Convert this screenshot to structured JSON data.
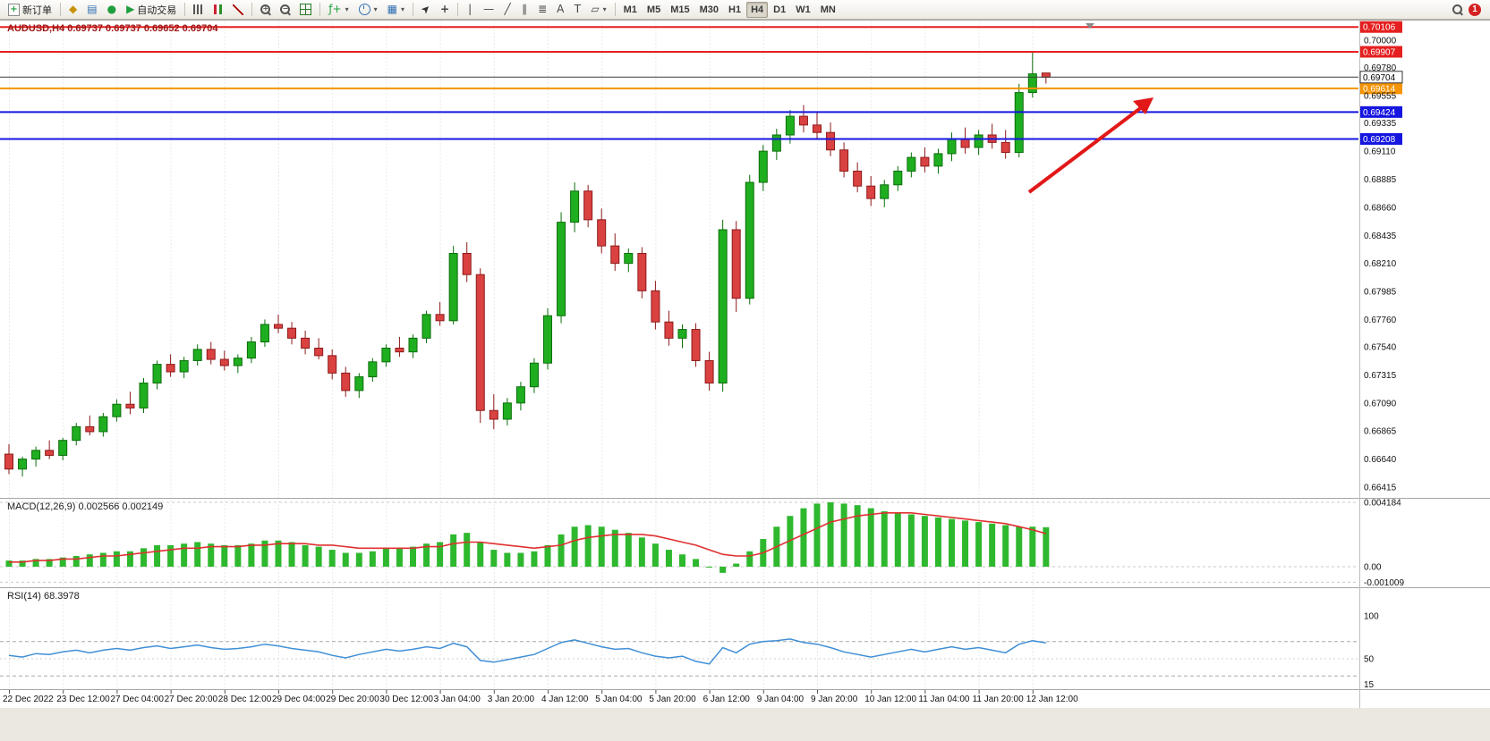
{
  "toolbar": {
    "new_order_label": "新订单",
    "autotrading_label": "自动交易",
    "timeframes": [
      "M1",
      "M5",
      "M15",
      "M30",
      "H1",
      "H4",
      "D1",
      "W1",
      "MN"
    ],
    "active_timeframe": "H4",
    "notification_count": "1"
  },
  "chart_data": {
    "type": "candlestick",
    "symbol": "AUDUSD,H4",
    "quote": {
      "open": "0.69737",
      "high": "0.69737",
      "low": "0.69652",
      "close": "0.69704"
    },
    "time_labels": [
      "22 Dec 2022",
      "23 Dec 12:00",
      "27 Dec 04:00",
      "27 Dec 20:00",
      "28 Dec 12:00",
      "29 Dec 04:00",
      "29 Dec 20:00",
      "30 Dec 12:00",
      "3 Jan 04:00",
      "3 Jan 20:00",
      "4 Jan 12:00",
      "5 Jan 04:00",
      "5 Jan 20:00",
      "6 Jan 12:00",
      "9 Jan 04:00",
      "9 Jan 20:00",
      "10 Jan 12:00",
      "11 Jan 04:00",
      "11 Jan 20:00",
      "12 Jan 12:00"
    ],
    "price_axis_labels": [
      "0.70000",
      "0.69780",
      "0.69555",
      "0.69335",
      "0.69110",
      "0.68885",
      "0.68660",
      "0.68435",
      "0.68210",
      "0.67985",
      "0.67760",
      "0.67540",
      "0.67315",
      "0.67090",
      "0.66865",
      "0.66640",
      "0.66415"
    ],
    "horizontal_lines": [
      {
        "name": "resistance-line-upper",
        "label": "0.70106",
        "price": 0.70106,
        "color": "#e52020",
        "width": 2
      },
      {
        "name": "resistance-line-lower",
        "label": "0.69907",
        "price": 0.69907,
        "color": "#e52020",
        "width": 2
      },
      {
        "name": "breakout-level-line",
        "label": "0.69614",
        "price": 0.69614,
        "color": "#f59300",
        "width": 2
      },
      {
        "name": "support-line-upper",
        "label": "0.69424",
        "price": 0.69424,
        "color": "#1616e0",
        "width": 2
      },
      {
        "name": "support-line-lower",
        "label": "0.69208",
        "price": 0.69208,
        "color": "#1616e0",
        "width": 2
      }
    ],
    "bid": {
      "label": "0.69704",
      "price": 0.69704
    },
    "ohlc": [
      [
        0.6668,
        0.6676,
        0.6652,
        0.6656
      ],
      [
        0.6656,
        0.6666,
        0.665,
        0.6664
      ],
      [
        0.6664,
        0.6674,
        0.6658,
        0.6671
      ],
      [
        0.6671,
        0.6679,
        0.6664,
        0.6667
      ],
      [
        0.6667,
        0.6681,
        0.6663,
        0.6679
      ],
      [
        0.6679,
        0.6693,
        0.6675,
        0.669
      ],
      [
        0.669,
        0.6699,
        0.6683,
        0.6686
      ],
      [
        0.6686,
        0.6701,
        0.6682,
        0.6698
      ],
      [
        0.6698,
        0.6712,
        0.6694,
        0.6708
      ],
      [
        0.6708,
        0.6718,
        0.67,
        0.6705
      ],
      [
        0.6705,
        0.6729,
        0.6701,
        0.6725
      ],
      [
        0.6725,
        0.6743,
        0.672,
        0.674
      ],
      [
        0.674,
        0.6748,
        0.673,
        0.6734
      ],
      [
        0.6734,
        0.6746,
        0.6729,
        0.6743
      ],
      [
        0.6743,
        0.6756,
        0.6739,
        0.6752
      ],
      [
        0.6752,
        0.6758,
        0.674,
        0.6744
      ],
      [
        0.6744,
        0.6751,
        0.6735,
        0.6739
      ],
      [
        0.6739,
        0.6748,
        0.6733,
        0.6745
      ],
      [
        0.6745,
        0.6762,
        0.6741,
        0.6758
      ],
      [
        0.6758,
        0.6776,
        0.6754,
        0.6772
      ],
      [
        0.6772,
        0.678,
        0.6765,
        0.6769
      ],
      [
        0.6769,
        0.6774,
        0.6756,
        0.6761
      ],
      [
        0.6761,
        0.6767,
        0.6748,
        0.6753
      ],
      [
        0.6753,
        0.6761,
        0.6744,
        0.6747
      ],
      [
        0.6747,
        0.6752,
        0.6728,
        0.6733
      ],
      [
        0.6733,
        0.6738,
        0.6714,
        0.6719
      ],
      [
        0.6719,
        0.6733,
        0.6713,
        0.673
      ],
      [
        0.673,
        0.6745,
        0.6726,
        0.6742
      ],
      [
        0.6742,
        0.6756,
        0.6738,
        0.6753
      ],
      [
        0.6753,
        0.6762,
        0.6746,
        0.675
      ],
      [
        0.675,
        0.6764,
        0.6745,
        0.6761
      ],
      [
        0.6761,
        0.6783,
        0.6757,
        0.678
      ],
      [
        0.678,
        0.679,
        0.6771,
        0.6775
      ],
      [
        0.6775,
        0.6835,
        0.6772,
        0.6829
      ],
      [
        0.6829,
        0.6838,
        0.6806,
        0.6812
      ],
      [
        0.6812,
        0.6817,
        0.6693,
        0.6703
      ],
      [
        0.6703,
        0.6716,
        0.6688,
        0.6696
      ],
      [
        0.6696,
        0.6713,
        0.6691,
        0.6709
      ],
      [
        0.6709,
        0.6726,
        0.6703,
        0.6722
      ],
      [
        0.6722,
        0.6745,
        0.6717,
        0.6741
      ],
      [
        0.6741,
        0.6785,
        0.6736,
        0.6779
      ],
      [
        0.6779,
        0.6862,
        0.6773,
        0.6854
      ],
      [
        0.6854,
        0.6886,
        0.6846,
        0.6879
      ],
      [
        0.6879,
        0.6884,
        0.685,
        0.6856
      ],
      [
        0.6856,
        0.6865,
        0.6829,
        0.6835
      ],
      [
        0.6835,
        0.6845,
        0.6815,
        0.6821
      ],
      [
        0.6821,
        0.6833,
        0.6814,
        0.6829
      ],
      [
        0.6829,
        0.6834,
        0.6793,
        0.6799
      ],
      [
        0.6799,
        0.6807,
        0.6768,
        0.6774
      ],
      [
        0.6774,
        0.6783,
        0.6755,
        0.6761
      ],
      [
        0.6761,
        0.6772,
        0.6753,
        0.6768
      ],
      [
        0.6768,
        0.6773,
        0.6738,
        0.6743
      ],
      [
        0.6743,
        0.675,
        0.6719,
        0.6725
      ],
      [
        0.6725,
        0.6856,
        0.6718,
        0.6848
      ],
      [
        0.6848,
        0.6855,
        0.6782,
        0.6793
      ],
      [
        0.6793,
        0.6892,
        0.6788,
        0.6886
      ],
      [
        0.6886,
        0.6916,
        0.6879,
        0.6911
      ],
      [
        0.6911,
        0.6929,
        0.6904,
        0.6924
      ],
      [
        0.6924,
        0.6944,
        0.6917,
        0.6939
      ],
      [
        0.6939,
        0.6948,
        0.6926,
        0.6932
      ],
      [
        0.6932,
        0.6943,
        0.6921,
        0.6926
      ],
      [
        0.6926,
        0.6934,
        0.6907,
        0.6912
      ],
      [
        0.6912,
        0.6918,
        0.689,
        0.6895
      ],
      [
        0.6895,
        0.6902,
        0.6878,
        0.6883
      ],
      [
        0.6883,
        0.6891,
        0.6867,
        0.6873
      ],
      [
        0.6873,
        0.6888,
        0.6866,
        0.6884
      ],
      [
        0.6884,
        0.6899,
        0.6879,
        0.6895
      ],
      [
        0.6895,
        0.691,
        0.689,
        0.6906
      ],
      [
        0.6906,
        0.6914,
        0.6894,
        0.6899
      ],
      [
        0.6899,
        0.6913,
        0.6893,
        0.6909
      ],
      [
        0.6909,
        0.6926,
        0.6903,
        0.6921
      ],
      [
        0.6921,
        0.693,
        0.6909,
        0.6914
      ],
      [
        0.6914,
        0.6928,
        0.6908,
        0.6924
      ],
      [
        0.6924,
        0.6933,
        0.6913,
        0.6918
      ],
      [
        0.6918,
        0.6928,
        0.6905,
        0.691
      ],
      [
        0.691,
        0.6965,
        0.6906,
        0.6958
      ],
      [
        0.6958,
        0.69905,
        0.6954,
        0.6973
      ],
      [
        0.69737,
        0.69737,
        0.69652,
        0.69704
      ]
    ],
    "indicators": {
      "macd": {
        "title": "MACD(12,26,9)",
        "value_main": "0.002566",
        "value_signal": "0.002149",
        "axis_labels": [
          {
            "label": "0.004184",
            "value": 0.004184
          },
          {
            "label": "0.00",
            "value": 0
          },
          {
            "label": "-0.001009",
            "value": -0.001009
          }
        ],
        "histogram_color": "#2eb82e",
        "signal_color": "#e03030",
        "histogram": [
          0.0004,
          0.0004,
          0.0005,
          0.0005,
          0.0006,
          0.0007,
          0.0008,
          0.0009,
          0.001,
          0.001,
          0.0012,
          0.0014,
          0.0014,
          0.0015,
          0.0016,
          0.0015,
          0.0014,
          0.0014,
          0.0015,
          0.0017,
          0.0017,
          0.0016,
          0.0014,
          0.0013,
          0.0011,
          0.0009,
          0.0009,
          0.001,
          0.0012,
          0.0012,
          0.0013,
          0.0015,
          0.0016,
          0.0021,
          0.0022,
          0.0016,
          0.0011,
          0.0009,
          0.0009,
          0.001,
          0.0014,
          0.0021,
          0.0026,
          0.0027,
          0.0026,
          0.0024,
          0.0022,
          0.0019,
          0.0015,
          0.0011,
          0.0008,
          0.0005,
          0.0,
          -0.0004,
          0.0002,
          0.001,
          0.0018,
          0.0026,
          0.0033,
          0.0038,
          0.0041,
          0.004184,
          0.0041,
          0.004,
          0.0038,
          0.0036,
          0.0035,
          0.0034,
          0.0033,
          0.0032,
          0.0031,
          0.003,
          0.0029,
          0.0028,
          0.0027,
          0.0026,
          0.0026,
          0.002566
        ],
        "signal": [
          0.0003,
          0.0003,
          0.0004,
          0.0004,
          0.0005,
          0.0005,
          0.0006,
          0.0007,
          0.0007,
          0.0008,
          0.0009,
          0.001,
          0.0011,
          0.0012,
          0.0012,
          0.0013,
          0.0013,
          0.0013,
          0.0014,
          0.0014,
          0.0015,
          0.0015,
          0.0015,
          0.0014,
          0.0014,
          0.0013,
          0.0012,
          0.0012,
          0.0012,
          0.0012,
          0.0012,
          0.0013,
          0.0013,
          0.0015,
          0.0016,
          0.0016,
          0.0015,
          0.0014,
          0.0013,
          0.0012,
          0.0013,
          0.0014,
          0.0017,
          0.0019,
          0.002,
          0.0021,
          0.0021,
          0.0021,
          0.002,
          0.0018,
          0.0016,
          0.0014,
          0.0011,
          0.0008,
          0.0007,
          0.0007,
          0.0009,
          0.0013,
          0.0017,
          0.0021,
          0.0025,
          0.0029,
          0.0031,
          0.0033,
          0.0034,
          0.0035,
          0.0035,
          0.0035,
          0.0034,
          0.0033,
          0.0032,
          0.0031,
          0.003,
          0.0029,
          0.0028,
          0.0026,
          0.0024,
          0.002149
        ]
      },
      "rsi": {
        "title": "RSI(14)",
        "value": "68.3978",
        "axis_labels": [
          {
            "label": "100",
            "value": 100
          },
          {
            "label": "50",
            "value": 50
          },
          {
            "label": "15",
            "value": 15
          }
        ],
        "levels": [
          70,
          30
        ],
        "line_color": "#3f8fd6",
        "values": [
          54,
          52,
          56,
          55,
          58,
          60,
          57,
          60,
          62,
          60,
          63,
          65,
          62,
          64,
          66,
          63,
          61,
          62,
          64,
          67,
          65,
          62,
          60,
          58,
          54,
          51,
          55,
          58,
          61,
          59,
          61,
          64,
          62,
          68,
          64,
          48,
          46,
          49,
          52,
          55,
          62,
          69,
          72,
          68,
          64,
          61,
          62,
          57,
          53,
          51,
          53,
          47,
          44,
          63,
          57,
          67,
          70,
          71,
          73,
          69,
          67,
          63,
          58,
          55,
          52,
          55,
          58,
          61,
          58,
          61,
          64,
          61,
          63,
          60,
          57,
          67,
          71,
          68.4
        ]
      }
    },
    "annotations": {
      "trend_arrow_color": "#e21818"
    }
  }
}
